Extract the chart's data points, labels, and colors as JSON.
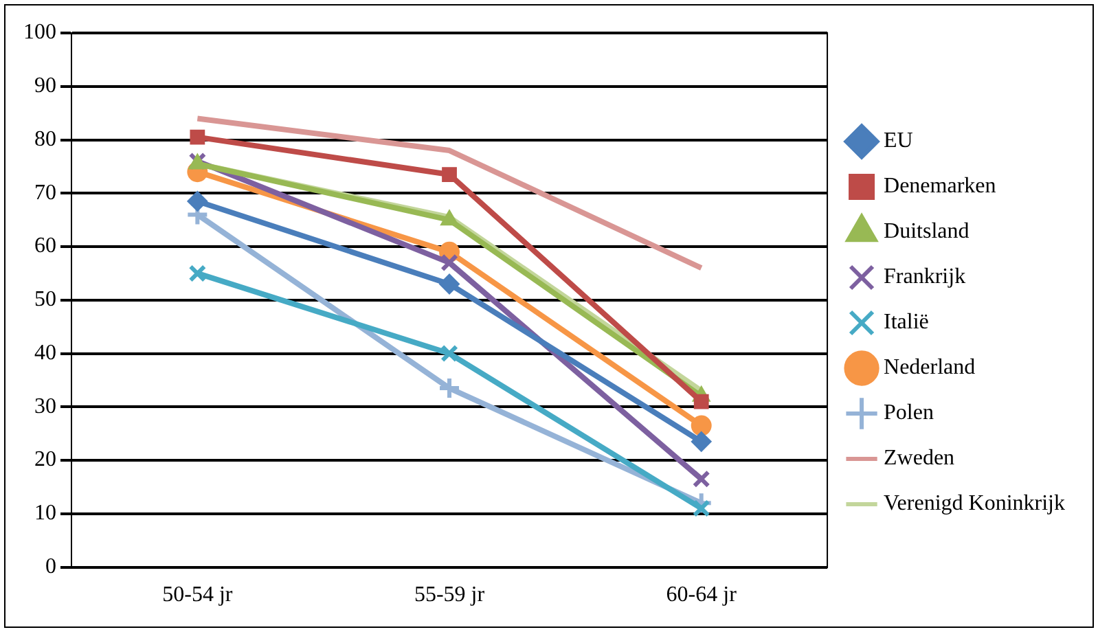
{
  "chart_data": {
    "type": "line",
    "categories": [
      "50-54 jr",
      "55-59 jr",
      "60-64 jr"
    ],
    "ylim": [
      0,
      100
    ],
    "yticks": [
      0,
      10,
      20,
      30,
      40,
      50,
      60,
      70,
      80,
      90,
      100
    ],
    "grid": "y",
    "legend": "right",
    "series": [
      {
        "name": "EU",
        "color": "#4a7ebb",
        "marker": "diamond",
        "values": [
          68.5,
          53,
          23.5
        ]
      },
      {
        "name": "Denemarken",
        "color": "#be4b48",
        "marker": "square",
        "values": [
          80.5,
          73.5,
          31
        ]
      },
      {
        "name": "Duitsland",
        "color": "#98b954",
        "marker": "triangle",
        "values": [
          75.5,
          65,
          32
        ]
      },
      {
        "name": "Frankrijk",
        "color": "#7d60a0",
        "marker": "cross",
        "values": [
          76,
          57,
          16.5
        ]
      },
      {
        "name": "Italië",
        "color": "#46aac5",
        "marker": "cross",
        "values": [
          55,
          40,
          11
        ]
      },
      {
        "name": "Nederland",
        "color": "#f79646",
        "marker": "circle",
        "values": [
          74,
          59,
          26.5
        ]
      },
      {
        "name": "Polen",
        "color": "#95b3d7",
        "marker": "plus",
        "values": [
          66,
          33.5,
          12
        ]
      },
      {
        "name": "Zweden",
        "color": "#d99694",
        "marker": "none",
        "values": [
          84,
          78,
          56
        ]
      },
      {
        "name": "Verenigd Koninkrijk",
        "color": "#c3d69b",
        "marker": "none",
        "values": [
          75.5,
          65.5,
          33
        ]
      }
    ]
  }
}
